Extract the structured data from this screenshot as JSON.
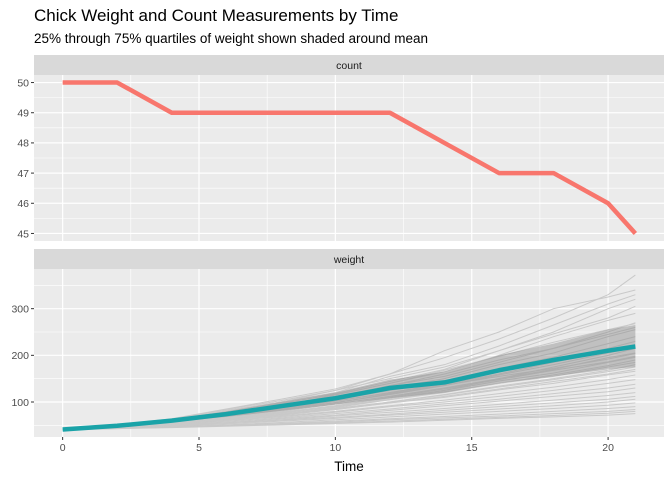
{
  "chart_data": {
    "type": "line",
    "title": "Chick Weight and Count Measurements by Time",
    "subtitle": "25% through 75% quartiles of weight shown shaded around mean",
    "xlabel": "Time",
    "xlim": [
      -1.05,
      22.05
    ],
    "x_ticks": [
      0,
      5,
      10,
      15,
      20
    ],
    "grid": true,
    "colors": {
      "panel_bg": "#ebebeb",
      "strip_bg": "#d9d9d9",
      "grid": "#ffffff",
      "count_line": "#f8766d",
      "weight_mean": "#1aa3a8",
      "weight_band": "#8c8c8c",
      "individual": "#c9c9c9"
    },
    "panels": [
      {
        "strip": "count",
        "ylim": [
          44.75,
          50.25
        ],
        "y_ticks": [
          45,
          46,
          47,
          48,
          49,
          50
        ],
        "series": [
          {
            "x": [
              0,
              2,
              4,
              6,
              8,
              10,
              12,
              14,
              16,
              18,
              20,
              21
            ],
            "y": [
              50,
              50,
              49,
              49,
              49,
              49,
              49,
              48,
              47,
              47,
              46,
              45
            ]
          }
        ]
      },
      {
        "strip": "weight",
        "ylim": [
          25,
          385
        ],
        "y_ticks": [
          100,
          200,
          300
        ],
        "mean": {
          "x": [
            0,
            2,
            4,
            6,
            8,
            10,
            12,
            14,
            16,
            18,
            20,
            21
          ],
          "y": [
            41,
            49,
            60,
            74,
            91,
            108,
            130,
            142,
            168,
            190,
            210,
            219
          ]
        },
        "quartile_band": {
          "x": [
            0,
            2,
            4,
            6,
            8,
            10,
            12,
            14,
            16,
            18,
            20,
            21
          ],
          "q25": [
            41,
            48,
            57,
            68,
            81,
            94,
            108,
            120,
            140,
            155,
            170,
            175
          ],
          "q75": [
            42,
            51,
            63,
            80,
            100,
            120,
            148,
            165,
            200,
            225,
            255,
            265
          ]
        },
        "individual_lines": [
          [
            42,
            51,
            64,
            85,
            106,
            128,
            160,
            195,
            235,
            280,
            330,
            372
          ],
          [
            41,
            51,
            63,
            84,
            103,
            125,
            160,
            210,
            250,
            300,
            325,
            340
          ],
          [
            40,
            50,
            62,
            80,
            100,
            120,
            155,
            180,
            220,
            265,
            310,
            330
          ],
          [
            42,
            52,
            62,
            82,
            100,
            125,
            150,
            175,
            210,
            250,
            300,
            320
          ],
          [
            41,
            50,
            60,
            78,
            96,
            118,
            144,
            170,
            210,
            246,
            280,
            305
          ],
          [
            41,
            49,
            61,
            78,
            98,
            116,
            140,
            165,
            200,
            240,
            275,
            290
          ],
          [
            42,
            50,
            60,
            75,
            93,
            112,
            135,
            155,
            185,
            215,
            250,
            270
          ],
          [
            40,
            49,
            59,
            74,
            90,
            108,
            130,
            150,
            180,
            205,
            240,
            255
          ],
          [
            41,
            48,
            58,
            72,
            88,
            104,
            125,
            145,
            172,
            196,
            225,
            240
          ],
          [
            42,
            49,
            57,
            70,
            86,
            102,
            120,
            140,
            165,
            190,
            215,
            230
          ],
          [
            41,
            47,
            56,
            68,
            83,
            99,
            116,
            135,
            158,
            180,
            205,
            218
          ],
          [
            40,
            48,
            56,
            67,
            80,
            96,
            112,
            130,
            150,
            170,
            195,
            205
          ],
          [
            41,
            47,
            55,
            66,
            78,
            92,
            108,
            125,
            145,
            162,
            185,
            196
          ],
          [
            42,
            48,
            56,
            65,
            77,
            90,
            105,
            120,
            140,
            155,
            175,
            185
          ],
          [
            41,
            47,
            54,
            63,
            74,
            86,
            100,
            115,
            132,
            148,
            165,
            175
          ],
          [
            40,
            46,
            53,
            62,
            72,
            84,
            98,
            110,
            126,
            140,
            158,
            166
          ],
          [
            41,
            46,
            52,
            60,
            70,
            80,
            92,
            104,
            118,
            132,
            148,
            158
          ],
          [
            42,
            47,
            53,
            60,
            68,
            78,
            90,
            100,
            112,
            125,
            140,
            148
          ],
          [
            41,
            45,
            51,
            58,
            66,
            75,
            85,
            96,
            106,
            118,
            130,
            138
          ],
          [
            40,
            45,
            50,
            56,
            64,
            72,
            82,
            92,
            102,
            112,
            122,
            130
          ],
          [
            41,
            45,
            49,
            55,
            62,
            70,
            78,
            86,
            95,
            104,
            114,
            120
          ],
          [
            42,
            46,
            50,
            55,
            61,
            67,
            74,
            82,
            90,
            98,
            106,
            112
          ],
          [
            41,
            44,
            48,
            53,
            59,
            65,
            72,
            78,
            85,
            92,
            100,
            106
          ],
          [
            40,
            44,
            47,
            51,
            56,
            62,
            68,
            74,
            80,
            86,
            93,
            98
          ],
          [
            41,
            44,
            46,
            50,
            54,
            59,
            64,
            69,
            74,
            80,
            86,
            90
          ],
          [
            42,
            45,
            47,
            50,
            53,
            57,
            62,
            66,
            70,
            75,
            80,
            84
          ],
          [
            41,
            43,
            46,
            49,
            52,
            55,
            59,
            63,
            67,
            71,
            76,
            80
          ],
          [
            40,
            43,
            45,
            48,
            51,
            54,
            57,
            61,
            65,
            68,
            72,
            75
          ],
          [
            41,
            45,
            52,
            62,
            74,
            88,
            105,
            125,
            150,
            175,
            200,
            215
          ],
          [
            42,
            48,
            58,
            72,
            90,
            110,
            135,
            160,
            190,
            215,
            245,
            260
          ],
          [
            40,
            49,
            60,
            74,
            92,
            115,
            140,
            168,
            198,
            228,
            255,
            268
          ],
          [
            41,
            50,
            58,
            70,
            84,
            102,
            120,
            138,
            160,
            185,
            210,
            222
          ],
          [
            42,
            49,
            57,
            68,
            82,
            98,
            118,
            136,
            155,
            172,
            192,
            204
          ],
          [
            41,
            48,
            55,
            64,
            76,
            90,
            106,
            122,
            140,
            158,
            178,
            190
          ],
          [
            40,
            47,
            55,
            65,
            78,
            92,
            110,
            128,
            148,
            168,
            186,
            198
          ],
          [
            41,
            46,
            53,
            62,
            73,
            86,
            100,
            116,
            134,
            150,
            168,
            180
          ],
          [
            42,
            47,
            54,
            62,
            72,
            84,
            98,
            112,
            128,
            144,
            160,
            170
          ]
        ]
      }
    ]
  }
}
